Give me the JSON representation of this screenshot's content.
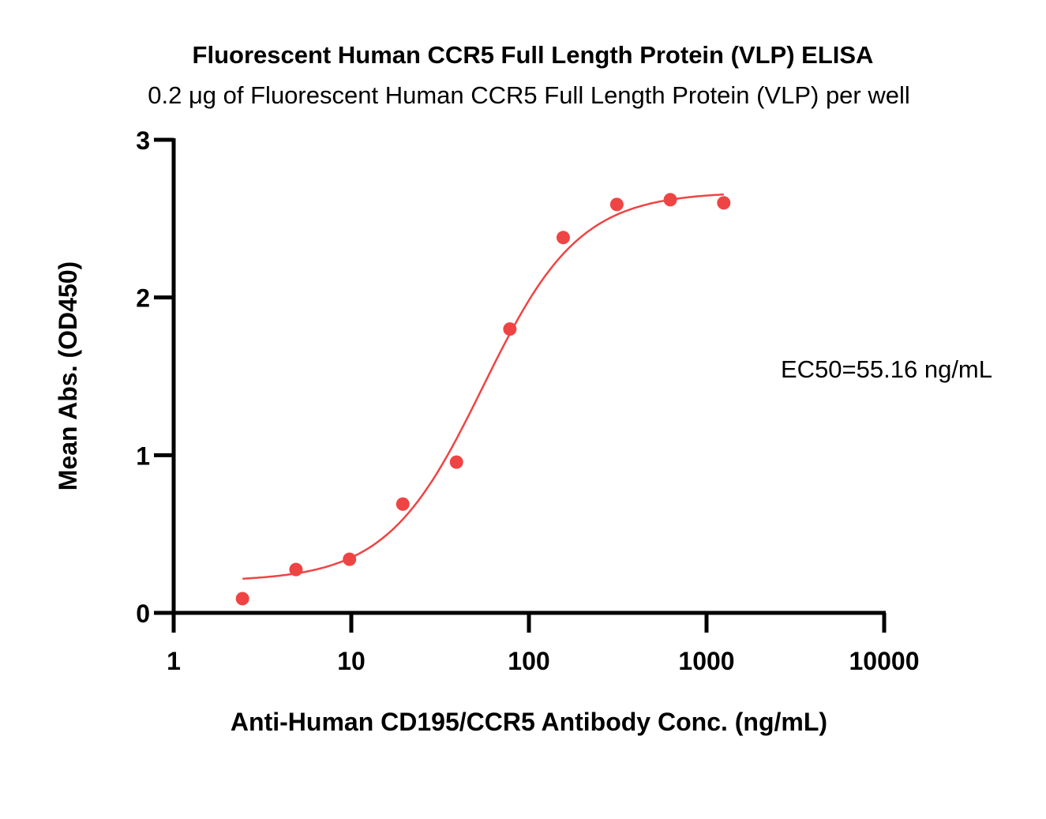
{
  "chart_data": {
    "type": "scatter",
    "title": "Fluorescent Human CCR5 Full Length Protein (VLP) ELISA",
    "subtitle": "0.2 μg of Fluorescent Human CCR5 Full Length Protein (VLP) per well",
    "xlabel": "Anti-Human CD195/CCR5  Antibody Conc. (ng/mL)",
    "ylabel": "Mean Abs. (OD450)",
    "xscale": "log",
    "xlim": [
      1,
      10000
    ],
    "ylim": [
      0,
      3
    ],
    "xticks": [
      "1",
      "10",
      "100",
      "1000",
      "10000"
    ],
    "yticks": [
      "0",
      "1",
      "2",
      "3"
    ],
    "annotation": "EC50=55.16 ng/mL",
    "color": "#ef4444",
    "series": [
      {
        "name": "data",
        "x": [
          2.44,
          4.88,
          9.77,
          19.5,
          39.1,
          78.1,
          156,
          312.5,
          625,
          1250
        ],
        "y": [
          0.09,
          0.275,
          0.34,
          0.69,
          0.956,
          1.8,
          2.38,
          2.59,
          2.62,
          2.6
        ]
      }
    ],
    "fit": {
      "model": "4PL",
      "bottom": 0.2,
      "top": 2.67,
      "ec50": 55.16,
      "hill": 1.6,
      "xrange": [
        2.44,
        1250
      ]
    }
  }
}
